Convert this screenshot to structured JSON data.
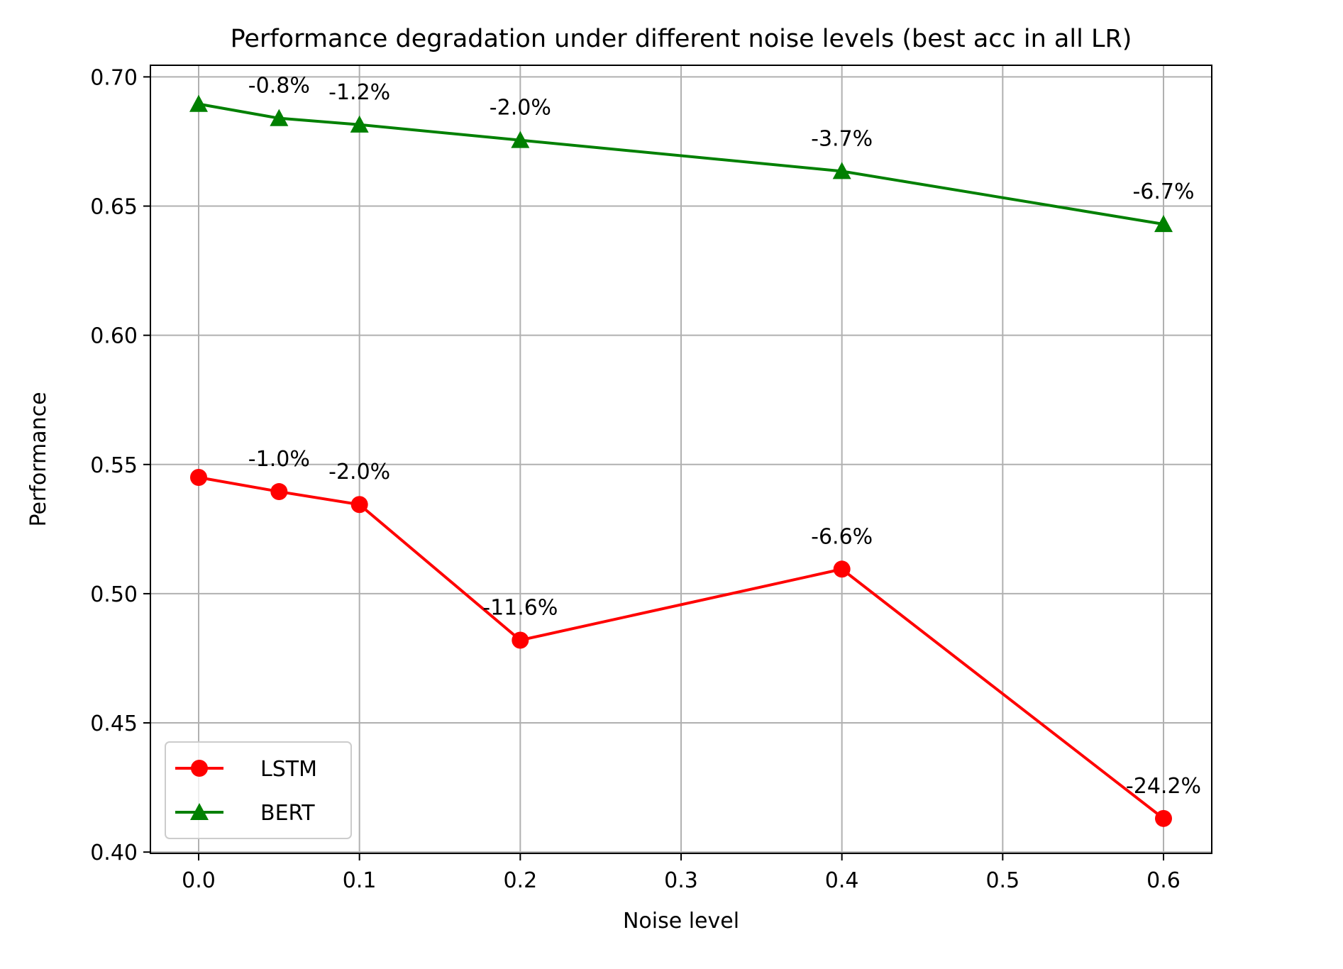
{
  "chart_data": {
    "type": "line",
    "title": "Performance degradation under different noise levels (best acc in all LR)",
    "xlabel": "Noise level",
    "ylabel": "Performance",
    "xlim": [
      -0.03,
      0.63
    ],
    "ylim": [
      0.3995,
      0.7045
    ],
    "xticks": [
      0.0,
      0.1,
      0.2,
      0.3,
      0.4,
      0.5,
      0.6
    ],
    "xtick_labels": [
      "0.0",
      "0.1",
      "0.2",
      "0.3",
      "0.4",
      "0.5",
      "0.6"
    ],
    "yticks": [
      0.4,
      0.45,
      0.5,
      0.55,
      0.6,
      0.65,
      0.7
    ],
    "ytick_labels": [
      "0.40",
      "0.45",
      "0.50",
      "0.55",
      "0.60",
      "0.65",
      "0.70"
    ],
    "grid": true,
    "legend_position": "lower-left",
    "x": [
      0.0,
      0.05,
      0.1,
      0.2,
      0.4,
      0.6
    ],
    "series": [
      {
        "name": "LSTM",
        "color": "#ff0000",
        "marker": "circle",
        "values": [
          0.545,
          0.5395,
          0.5345,
          0.482,
          0.5095,
          0.413
        ],
        "annotations": [
          "",
          "-1.0%",
          "-2.0%",
          "-11.6%",
          "-6.6%",
          "-24.2%"
        ]
      },
      {
        "name": "BERT",
        "color": "#008000",
        "marker": "triangle",
        "values": [
          0.6895,
          0.684,
          0.6815,
          0.6755,
          0.6635,
          0.643
        ],
        "annotations": [
          "",
          "-0.8%",
          "-1.2%",
          "-2.0%",
          "-3.7%",
          "-6.7%"
        ]
      }
    ]
  }
}
